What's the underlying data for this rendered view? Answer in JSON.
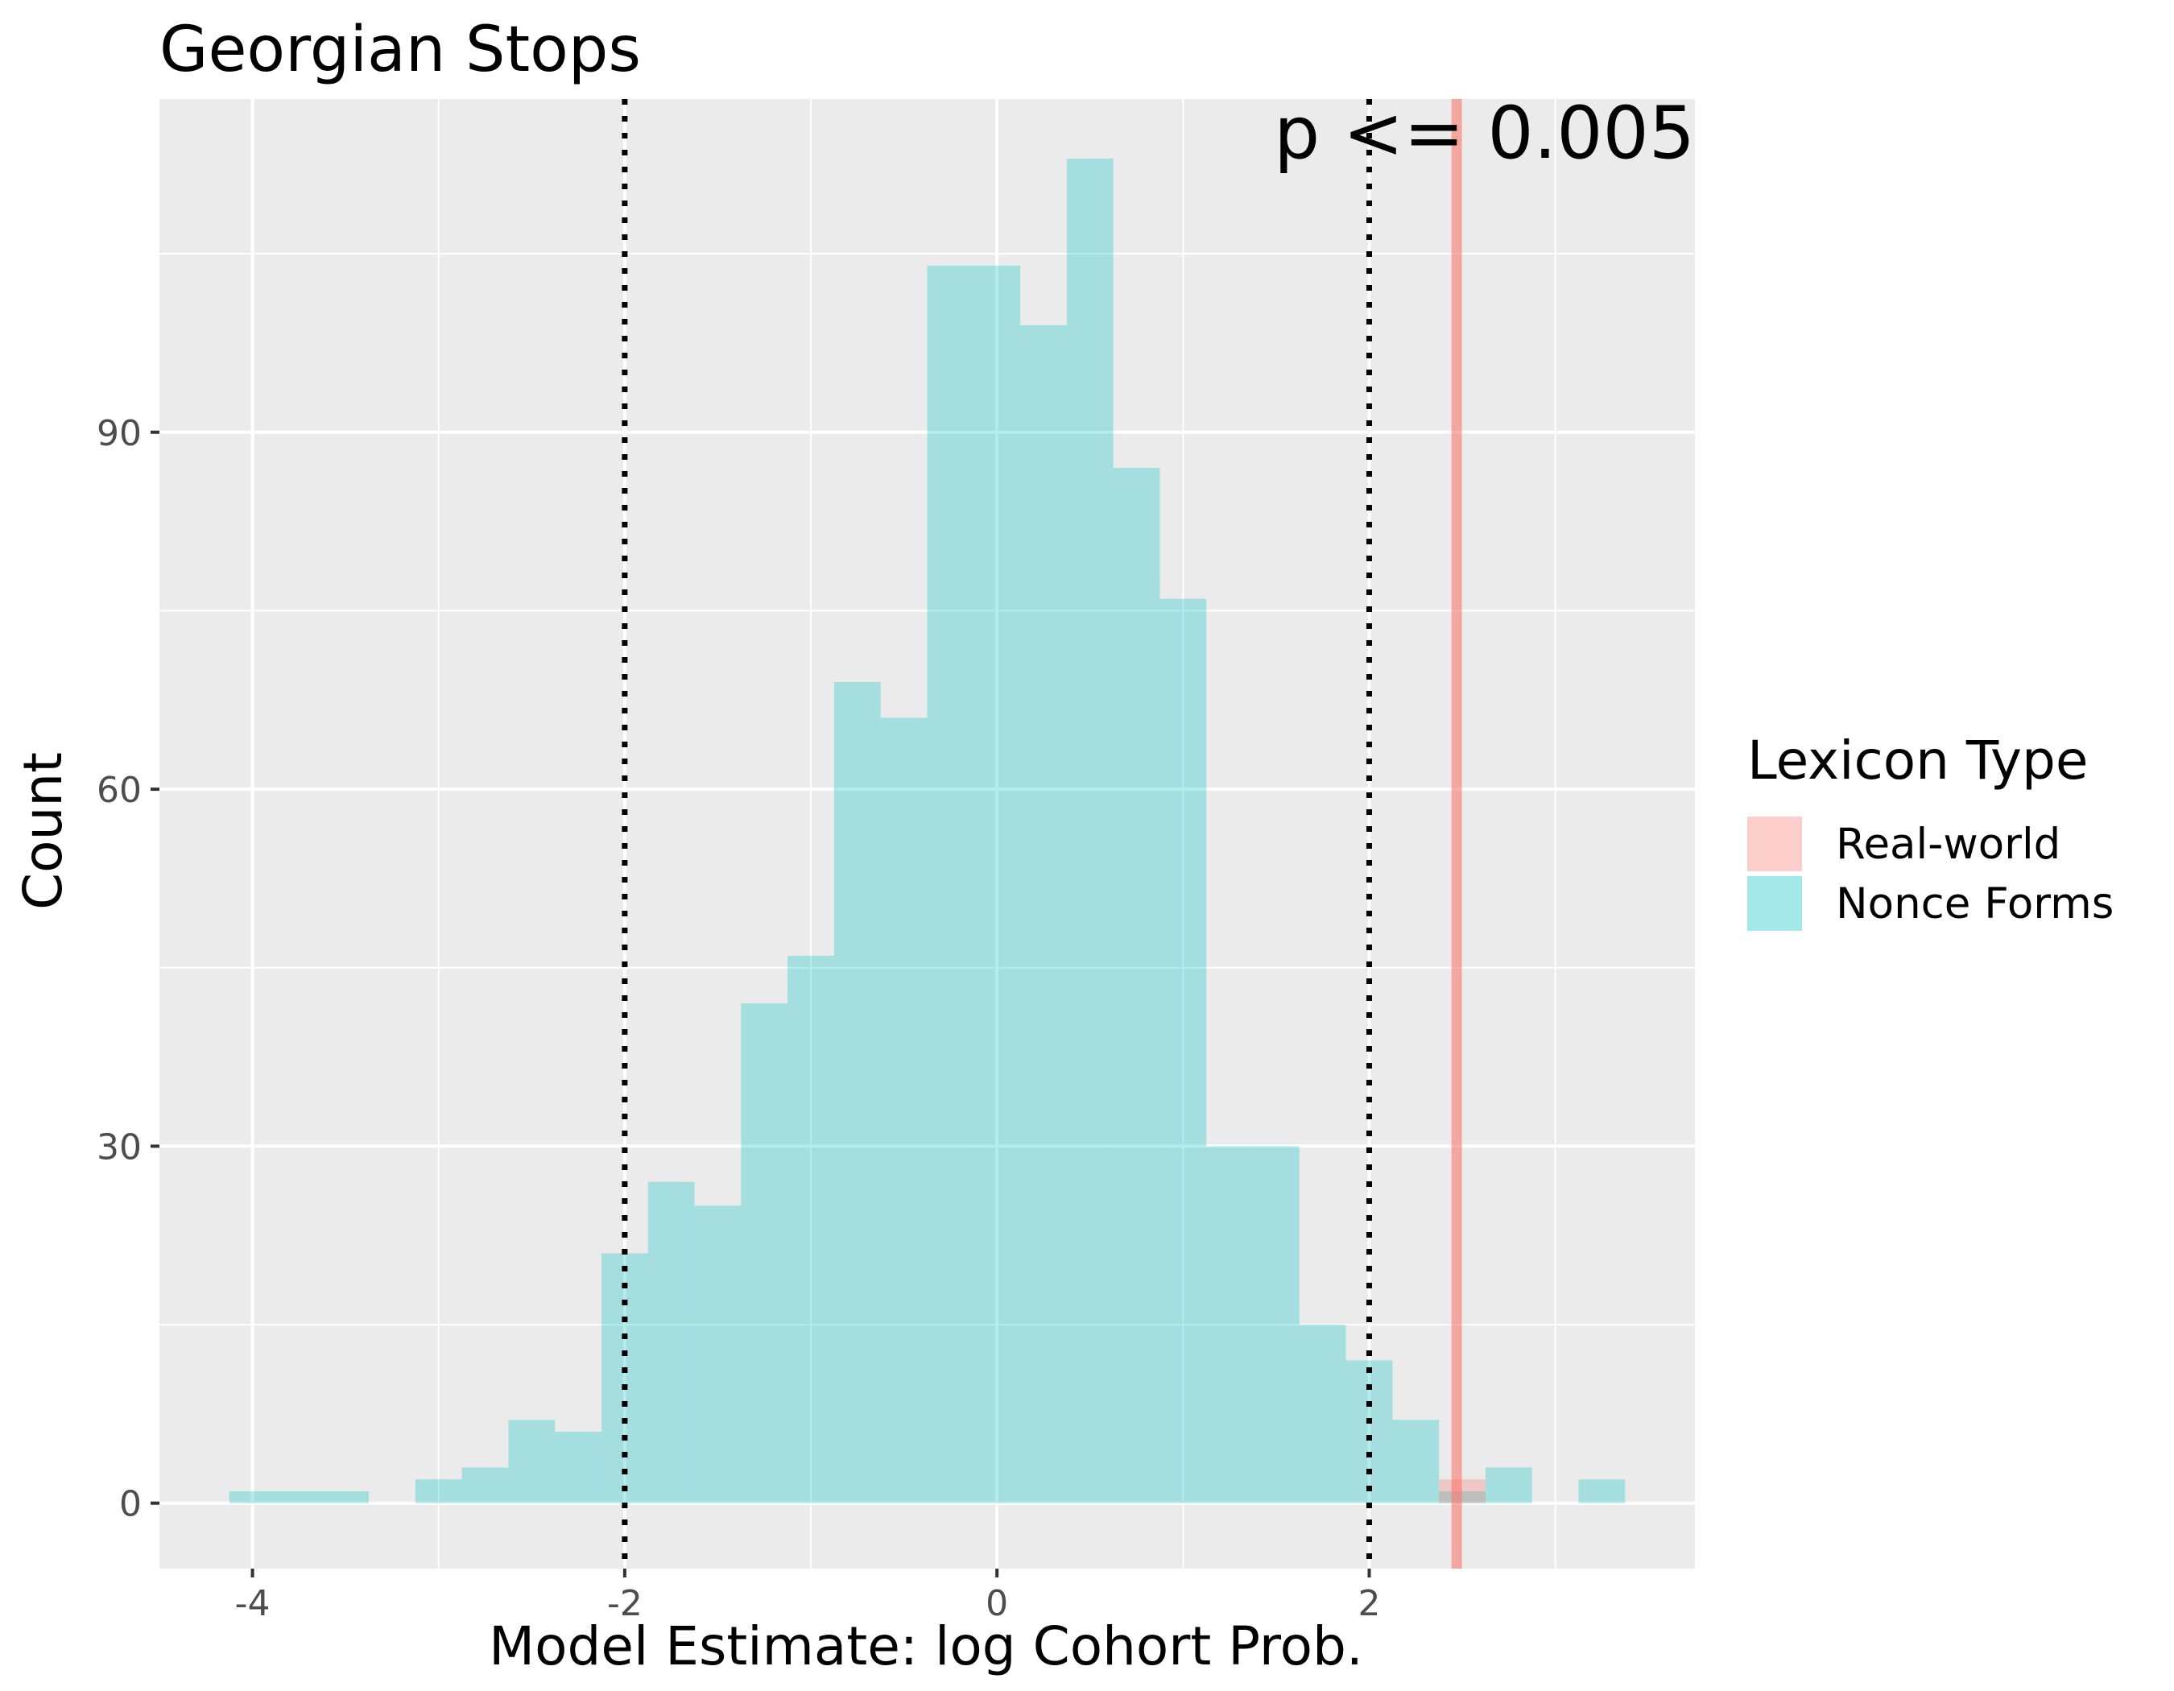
{
  "chart_data": {
    "type": "bar",
    "title": "Georgian Stops",
    "xlabel": "Model Estimate: log Cohort Prob.",
    "ylabel": "Count",
    "xlim": [
      -4.5,
      3.75
    ],
    "ylim": [
      -5.5,
      118
    ],
    "x_ticks": [
      {
        "value": -4,
        "label": "-4"
      },
      {
        "value": -2,
        "label": "-2"
      },
      {
        "value": 0,
        "label": "0"
      },
      {
        "value": 2,
        "label": "2"
      }
    ],
    "y_ticks": [
      {
        "value": 0,
        "label": "0"
      },
      {
        "value": 30,
        "label": "30"
      },
      {
        "value": 60,
        "label": "60"
      },
      {
        "value": 90,
        "label": "90"
      }
    ],
    "grid": true,
    "legend": {
      "title": "Lexicon Type",
      "placement": "right",
      "entries": [
        {
          "label": "Real-world",
          "color": "#F8766D"
        },
        {
          "label": "Nonce Forms",
          "color": "#00BFC4"
        }
      ]
    },
    "bin_width": 0.25,
    "series": [
      {
        "name": "Nonce Forms",
        "color": "#00BFC4",
        "bins_start": [
          -4.125,
          -3.875,
          -3.625,
          -3.125,
          -2.875,
          -2.625,
          -2.375,
          -2.125,
          -1.875,
          -1.625,
          -1.375,
          -1.125,
          -0.875,
          -0.625,
          -0.375,
          -0.125,
          0.125,
          0.375,
          0.625,
          0.875,
          1.125,
          1.375,
          1.625,
          1.875,
          2.125,
          2.375,
          2.625,
          3.125
        ],
        "values": [
          1,
          1,
          1,
          2,
          3,
          7,
          6,
          21,
          27,
          25,
          42,
          46,
          69,
          66,
          104,
          104,
          99,
          113,
          87,
          76,
          30,
          30,
          15,
          12,
          7,
          1,
          3,
          2
        ]
      },
      {
        "name": "Real-world",
        "color": "#F8766D",
        "bins_start": [
          2.375
        ],
        "values": [
          2
        ]
      }
    ],
    "reference_lines": [
      {
        "x": -2,
        "style": "dotted",
        "color": "#000000"
      },
      {
        "x": 2,
        "style": "dotted",
        "color": "#000000"
      },
      {
        "x": 2.47,
        "style": "solid",
        "color": "#F8766D"
      }
    ],
    "annotations": [
      {
        "text": "p <= 0.005"
      }
    ]
  }
}
